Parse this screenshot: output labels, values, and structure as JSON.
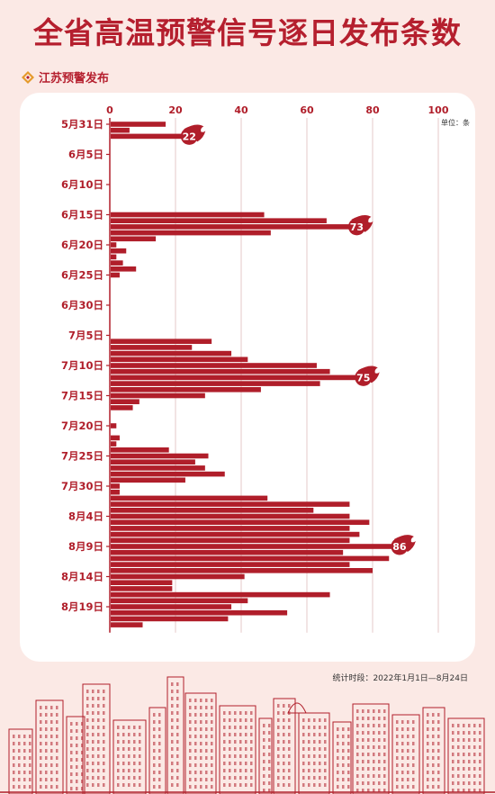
{
  "header": {
    "title": "全省高温预警信号逐日发布条数",
    "brand": "江苏预警发布"
  },
  "footnote": "统计时段：2022年1月1日—8月24日",
  "colors": {
    "bar": "#b01e2a",
    "background": "#fbe9e5",
    "panel": "#ffffff",
    "grid": "#e6c8c8"
  },
  "chart_data": {
    "type": "bar",
    "orientation": "horizontal",
    "unit_label": "单位：条",
    "xlim": [
      0,
      100
    ],
    "x_ticks": [
      0,
      20,
      40,
      60,
      80,
      100
    ],
    "grid": true,
    "y_tick_labels": [
      {
        "index": 0,
        "label": "5月31日"
      },
      {
        "index": 5,
        "label": "6月5日"
      },
      {
        "index": 10,
        "label": "6月10日"
      },
      {
        "index": 15,
        "label": "6月15日"
      },
      {
        "index": 20,
        "label": "6月20日"
      },
      {
        "index": 25,
        "label": "6月25日"
      },
      {
        "index": 30,
        "label": "6月30日"
      },
      {
        "index": 35,
        "label": "7月5日"
      },
      {
        "index": 40,
        "label": "7月10日"
      },
      {
        "index": 45,
        "label": "7月15日"
      },
      {
        "index": 50,
        "label": "7月20日"
      },
      {
        "index": 55,
        "label": "7月25日"
      },
      {
        "index": 60,
        "label": "7月30日"
      },
      {
        "index": 65,
        "label": "8月4日"
      },
      {
        "index": 70,
        "label": "8月9日"
      },
      {
        "index": 75,
        "label": "8月14日"
      },
      {
        "index": 80,
        "label": "8月19日"
      }
    ],
    "values": [
      17,
      6,
      22,
      0,
      0,
      0,
      0,
      0,
      0,
      0,
      0,
      0,
      0,
      0,
      0,
      47,
      66,
      73,
      49,
      14,
      2,
      5,
      2,
      4,
      8,
      3,
      0,
      0,
      0,
      0,
      0,
      0,
      0,
      0,
      0,
      0,
      31,
      25,
      37,
      42,
      63,
      67,
      75,
      64,
      46,
      29,
      9,
      7,
      0,
      0,
      2,
      0,
      3,
      2,
      18,
      30,
      26,
      29,
      35,
      23,
      3,
      3,
      48,
      73,
      62,
      73,
      79,
      73,
      76,
      73,
      86,
      71,
      85,
      73,
      80,
      41,
      19,
      19,
      67,
      42,
      37,
      54,
      36,
      10
    ],
    "peaks": [
      {
        "index": 2,
        "value": 22
      },
      {
        "index": 17,
        "value": 73
      },
      {
        "index": 42,
        "value": 75
      },
      {
        "index": 70,
        "value": 86
      }
    ]
  }
}
